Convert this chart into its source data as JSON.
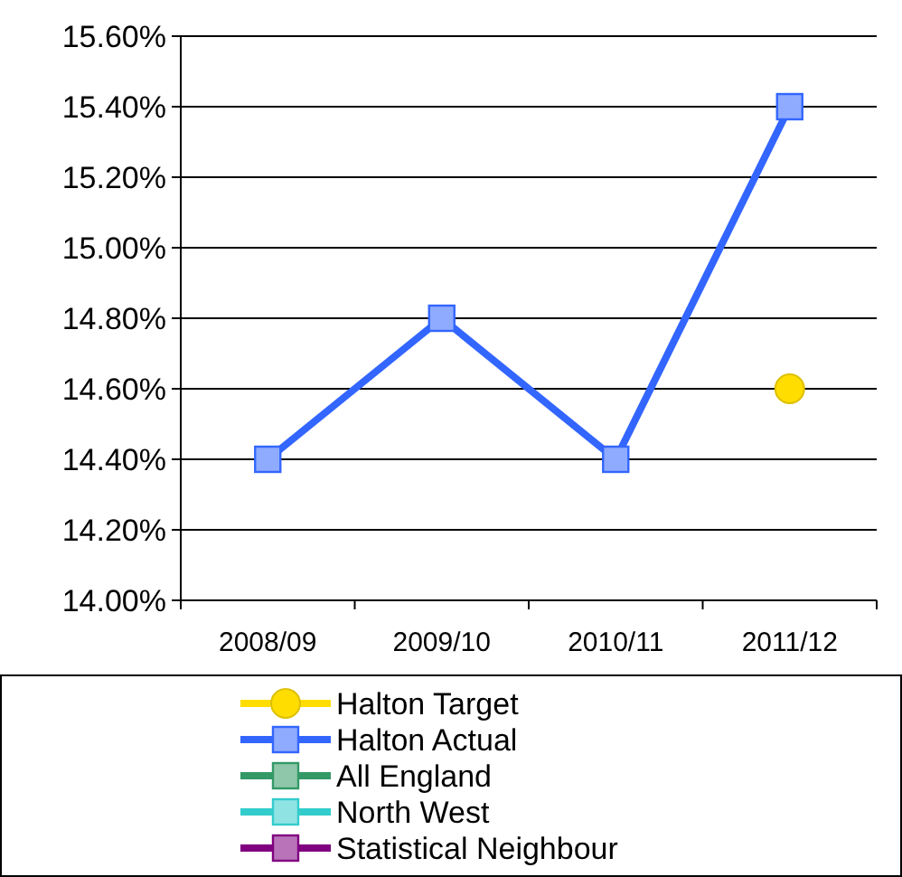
{
  "chart_data": {
    "type": "line",
    "categories": [
      "2008/09",
      "2009/10",
      "2010/11",
      "2011/12"
    ],
    "series": [
      {
        "name": "Halton Target",
        "color": "#ffdd00",
        "marker": "circle",
        "type": "scatter",
        "values": [
          null,
          null,
          null,
          14.6
        ]
      },
      {
        "name": "Halton Actual",
        "color": "#3366ff",
        "marker": "square",
        "values": [
          14.4,
          14.8,
          14.4,
          15.4
        ]
      },
      {
        "name": "All England",
        "color": "#339966",
        "marker": "square",
        "values": [
          null,
          null,
          null,
          null
        ]
      },
      {
        "name": "North West",
        "color": "#33cccc",
        "marker": "square",
        "values": [
          null,
          null,
          null,
          null
        ]
      },
      {
        "name": "Statistical Neighbour",
        "color": "#800080",
        "marker": "square",
        "values": [
          null,
          null,
          null,
          null
        ]
      }
    ],
    "ylim": [
      14.0,
      15.6
    ],
    "yticks": [
      {
        "value": 14.0,
        "label": "14.00%"
      },
      {
        "value": 14.2,
        "label": "14.20%"
      },
      {
        "value": 14.4,
        "label": "14.40%"
      },
      {
        "value": 14.6,
        "label": "14.60%"
      },
      {
        "value": 14.8,
        "label": "14.80%"
      },
      {
        "value": 15.0,
        "label": "15.00%"
      },
      {
        "value": 15.2,
        "label": "15.20%"
      },
      {
        "value": 15.4,
        "label": "15.40%"
      },
      {
        "value": 15.6,
        "label": "15.60%"
      }
    ],
    "grid": "y",
    "legend": "bottom",
    "line_style": "solid"
  }
}
